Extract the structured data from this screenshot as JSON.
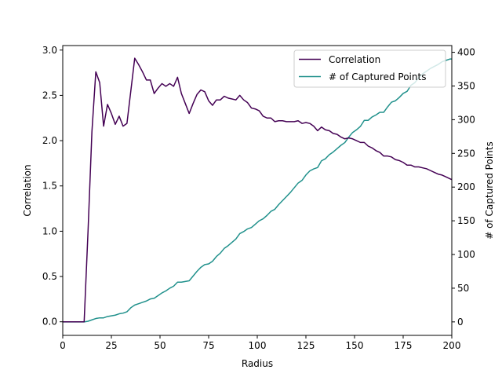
{
  "chart_data": {
    "type": "line",
    "title": "",
    "xlabel": "Radius",
    "ylabel_left": "Correlation",
    "ylabel_right": "# of Captured Points",
    "xlim": [
      0,
      200
    ],
    "ylim_left": [
      -0.15,
      3.05
    ],
    "ylim_right": [
      -20,
      410
    ],
    "x_ticks": [
      0,
      25,
      50,
      75,
      100,
      125,
      150,
      175,
      200
    ],
    "y_left_ticks": [
      0.0,
      0.5,
      1.0,
      1.5,
      2.0,
      2.5,
      3.0
    ],
    "y_right_ticks": [
      0,
      50,
      100,
      150,
      200,
      250,
      300,
      350,
      400
    ],
    "x_tick_labels": [
      "0",
      "25",
      "50",
      "75",
      "100",
      "125",
      "150",
      "175",
      "200"
    ],
    "y_left_tick_labels": [
      "0.0",
      "0.5",
      "1.0",
      "1.5",
      "2.0",
      "2.5",
      "3.0"
    ],
    "y_right_tick_labels": [
      "0",
      "50",
      "100",
      "150",
      "200",
      "250",
      "300",
      "350",
      "400"
    ],
    "grid": false,
    "legend_position": "top-right",
    "series": [
      {
        "name": "Correlation",
        "axis": "left",
        "color": "#440154",
        "x": [
          0,
          5,
          10,
          11,
          13,
          15,
          17,
          19,
          21,
          23,
          25,
          27,
          29,
          31,
          33,
          35,
          37,
          39,
          41,
          43,
          45,
          47,
          49,
          51,
          53,
          55,
          57,
          59,
          61,
          63,
          65,
          67,
          69,
          71,
          73,
          75,
          77,
          79,
          81,
          83,
          85,
          87,
          89,
          91,
          93,
          95,
          97,
          99,
          101,
          103,
          105,
          107,
          109,
          111,
          113,
          115,
          117,
          119,
          121,
          123,
          125,
          127,
          129,
          131,
          133,
          135,
          137,
          139,
          141,
          143,
          145,
          147,
          149,
          151,
          153,
          155,
          157,
          159,
          161,
          163,
          165,
          167,
          169,
          171,
          173,
          175,
          177,
          179,
          181,
          183,
          185,
          187,
          189,
          191,
          193,
          195,
          197,
          199,
          200
        ],
        "values": [
          0,
          0,
          0,
          0,
          1.0,
          2.1,
          2.76,
          2.64,
          2.16,
          2.4,
          2.3,
          2.18,
          2.27,
          2.16,
          2.19,
          2.55,
          2.91,
          2.84,
          2.76,
          2.67,
          2.67,
          2.52,
          2.58,
          2.63,
          2.6,
          2.63,
          2.6,
          2.7,
          2.52,
          2.41,
          2.3,
          2.41,
          2.51,
          2.56,
          2.54,
          2.44,
          2.39,
          2.45,
          2.45,
          2.49,
          2.47,
          2.46,
          2.45,
          2.5,
          2.45,
          2.42,
          2.36,
          2.35,
          2.33,
          2.27,
          2.25,
          2.25,
          2.21,
          2.22,
          2.22,
          2.21,
          2.21,
          2.21,
          2.22,
          2.19,
          2.2,
          2.19,
          2.16,
          2.11,
          2.15,
          2.12,
          2.11,
          2.08,
          2.07,
          2.04,
          2.02,
          2.03,
          2.02,
          2.0,
          1.98,
          1.98,
          1.94,
          1.92,
          1.89,
          1.87,
          1.83,
          1.83,
          1.82,
          1.79,
          1.78,
          1.76,
          1.73,
          1.73,
          1.71,
          1.71,
          1.7,
          1.69,
          1.67,
          1.65,
          1.63,
          1.62,
          1.6,
          1.58,
          1.57
        ]
      },
      {
        "name": "# of Captured Points",
        "axis": "right",
        "color": "#21918c",
        "x": [
          0,
          5,
          10,
          11,
          13,
          15,
          17,
          19,
          21,
          23,
          25,
          27,
          29,
          31,
          33,
          35,
          37,
          39,
          41,
          43,
          45,
          47,
          49,
          51,
          53,
          55,
          57,
          59,
          61,
          63,
          65,
          67,
          69,
          71,
          73,
          75,
          77,
          79,
          81,
          83,
          85,
          87,
          89,
          91,
          93,
          95,
          97,
          99,
          101,
          103,
          105,
          107,
          109,
          111,
          113,
          115,
          117,
          119,
          121,
          123,
          125,
          127,
          129,
          131,
          133,
          135,
          137,
          139,
          141,
          143,
          145,
          147,
          149,
          151,
          153,
          155,
          157,
          159,
          161,
          163,
          165,
          167,
          169,
          171,
          173,
          175,
          177,
          179,
          181,
          183,
          185,
          187,
          189,
          191,
          193,
          195,
          197,
          199,
          200
        ],
        "values": [
          0,
          0,
          0,
          0,
          1,
          3,
          5,
          6,
          6,
          8,
          9,
          10,
          12,
          13,
          15,
          21,
          25,
          27,
          29,
          31,
          34,
          35,
          39,
          43,
          46,
          50,
          53,
          59,
          59,
          60,
          61,
          68,
          75,
          81,
          85,
          86,
          90,
          97,
          102,
          109,
          113,
          118,
          123,
          131,
          134,
          138,
          140,
          145,
          150,
          153,
          158,
          164,
          167,
          174,
          180,
          186,
          192,
          199,
          206,
          210,
          218,
          224,
          227,
          229,
          239,
          242,
          248,
          252,
          257,
          262,
          266,
          274,
          281,
          285,
          290,
          299,
          299,
          304,
          307,
          311,
          311,
          319,
          326,
          328,
          333,
          339,
          342,
          351,
          355,
          362,
          368,
          372,
          376,
          379,
          382,
          386,
          388,
          390,
          390
        ]
      }
    ]
  }
}
